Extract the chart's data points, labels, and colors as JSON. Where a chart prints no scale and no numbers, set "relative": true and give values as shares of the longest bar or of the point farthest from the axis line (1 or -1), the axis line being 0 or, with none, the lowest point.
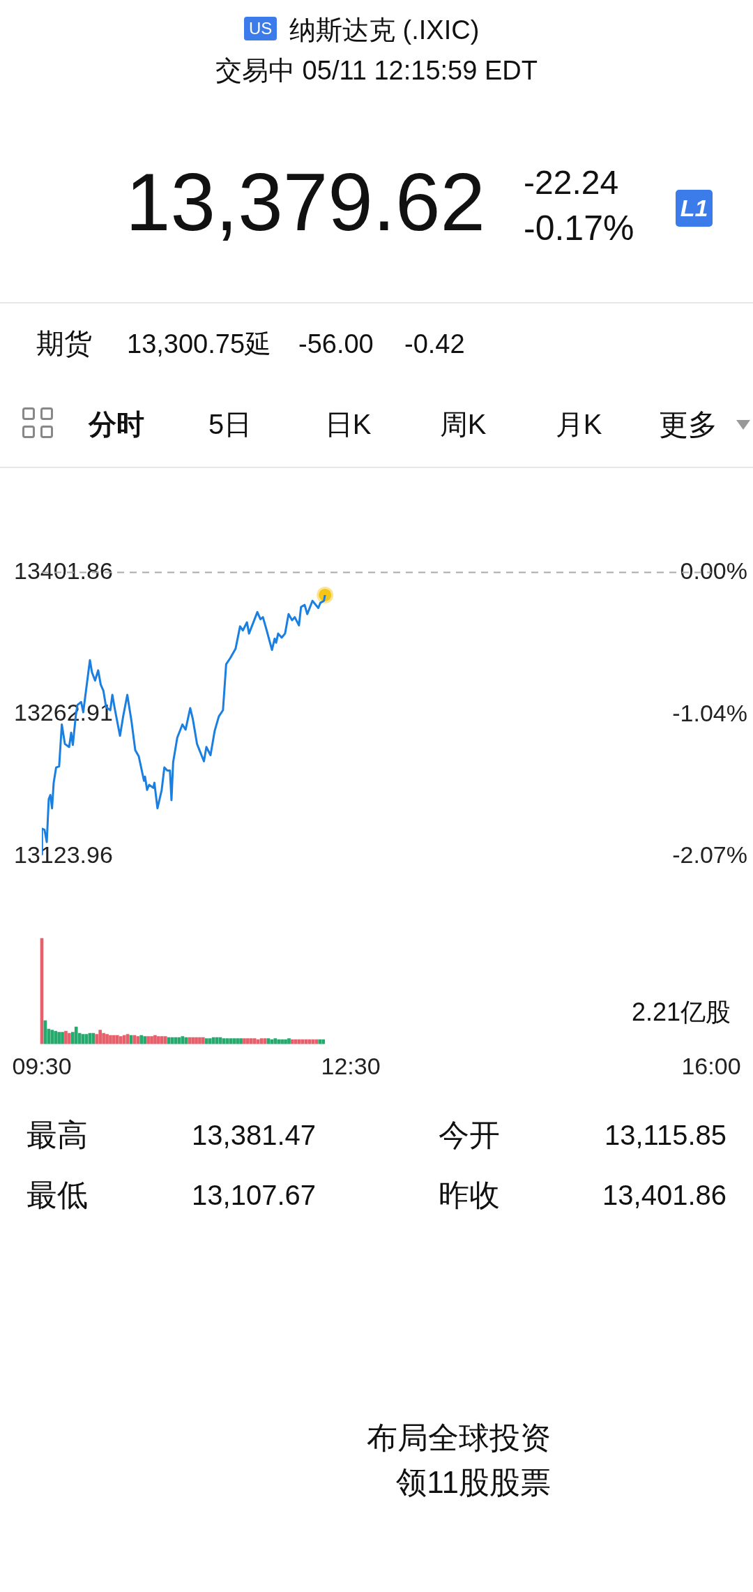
{
  "chart_data": [
    {
      "type": "line",
      "title": "纳斯达克 (.IXIC)",
      "subtitle": "交易中 05/11 12:15:59 EDT",
      "annotations": [
        "US",
        "13,379.62",
        "-22.24",
        "-0.17%",
        "L1",
        "期货",
        "13,300.75延",
        "-56.00",
        "-0.42",
        "分时",
        "5日",
        "日K",
        "周K",
        "月K",
        "更多",
        "最高",
        "13,381.47",
        "今开",
        "13,115.85",
        "最低",
        "13,107.67",
        "昨收",
        "13,401.86",
        "布局全球投资",
        "领11股股票"
      ],
      "xlim": [
        9.5,
        16
      ],
      "ylim": [
        13123.96,
        13401.86
      ],
      "yticks": [
        13123.96,
        13262.91,
        13401.86
      ],
      "y2lim": [
        -2.07,
        0
      ],
      "y2ticks": [
        {
          "value": -2.07,
          "label": "-2.07%"
        },
        {
          "value": -1.04,
          "label": "-1.04%"
        },
        {
          "value": 0,
          "label": "0.00%"
        }
      ],
      "tick_labels": "y",
      "ref_lines": [
        {
          "axis": "y",
          "value": 13401.86,
          "color": "#aaaaaa",
          "line_style": "dashed"
        }
      ],
      "series": [
        {
          "type": "line",
          "color": "#1a7fe0",
          "marker": "none",
          "x": [
            9.5,
            9.502,
            9.526,
            9.548,
            9.567,
            9.583,
            9.599,
            9.615,
            9.639,
            9.668,
            9.694,
            9.724,
            9.765,
            9.785,
            9.801,
            9.829,
            9.845,
            9.882,
            9.902,
            9.967,
            9.987,
            10.017,
            10.047,
            10.072,
            10.098,
            10.124,
            10.165,
            10.185,
            10.209,
            10.259,
            10.29,
            10.33,
            10.371,
            10.407,
            10.441,
            10.492,
            10.502,
            10.522,
            10.542,
            10.583,
            10.593,
            10.623,
            10.664,
            10.69,
            10.718,
            10.744,
            10.759,
            10.775,
            10.815,
            10.865,
            10.896,
            10.941,
            10.967,
            11.007,
            11.074,
            11.098,
            11.138,
            11.179,
            11.219,
            11.259,
            11.29,
            11.33,
            11.381,
            11.425,
            11.452,
            11.492,
            11.512,
            11.593,
            11.623,
            11.647,
            11.684,
            11.735,
            11.761,
            11.775,
            11.795,
            11.829,
            11.862,
            11.896,
            11.93,
            11.956,
            11.997,
            12.017,
            12.052,
            12.078,
            12.128,
            12.185,
            12.205,
            12.239,
            12.25
          ],
          "values": [
            13126,
            13151,
            13150,
            13138,
            13180,
            13184,
            13171,
            13196,
            13211,
            13212,
            13253,
            13234,
            13231,
            13245,
            13233,
            13261,
            13272,
            13275,
            13265,
            13316,
            13304,
            13296,
            13306,
            13292,
            13286,
            13270,
            13267,
            13282,
            13268,
            13242,
            13261,
            13282,
            13256,
            13228,
            13222,
            13198,
            13202,
            13189,
            13194,
            13191,
            13196,
            13171,
            13189,
            13211,
            13208,
            13208,
            13179,
            13216,
            13240,
            13253,
            13248,
            13269,
            13258,
            13234,
            13217,
            13231,
            13223,
            13247,
            13261,
            13267,
            13312,
            13318,
            13327,
            13349,
            13345,
            13353,
            13342,
            13363,
            13356,
            13358,
            13345,
            13326,
            13337,
            13333,
            13342,
            13338,
            13342,
            13361,
            13355,
            13358,
            13350,
            13368,
            13370,
            13361,
            13374,
            13367,
            13372,
            13374,
            13379.62
          ]
        },
        {
          "type": "scatter",
          "color": "#f5c518",
          "marker": "circle",
          "x": [
            12.25
          ],
          "values": [
            13379.62
          ]
        }
      ]
    },
    {
      "type": "bar",
      "relative": true,
      "annotations": [
        "2.21亿股"
      ],
      "xlim": [
        9.5,
        16
      ],
      "xticks": [
        {
          "value": 9.5,
          "label": "09:30"
        },
        {
          "value": 12.5,
          "label": "12:30"
        },
        {
          "value": 16,
          "label": "16:00"
        }
      ],
      "x": [
        9.5,
        9.5333,
        9.5667,
        9.6,
        9.6333,
        9.6667,
        9.7,
        9.7333,
        9.7667,
        9.8,
        9.8333,
        9.8667,
        9.9,
        9.9333,
        9.9667,
        10,
        10.0333,
        10.0667,
        10.1,
        10.1333,
        10.1667,
        10.2,
        10.2333,
        10.2667,
        10.3,
        10.3333,
        10.3667,
        10.4,
        10.4333,
        10.4667,
        10.5,
        10.5333,
        10.5667,
        10.6,
        10.6333,
        10.6667,
        10.7,
        10.7333,
        10.7667,
        10.8,
        10.8333,
        10.8667,
        10.9,
        10.9333,
        10.9667,
        11,
        11.0333,
        11.0667,
        11.1,
        11.1333,
        11.1667,
        11.2,
        11.2333,
        11.2667,
        11.3,
        11.3333,
        11.3667,
        11.4,
        11.4333,
        11.4667,
        11.5,
        11.5333,
        11.5667,
        11.6,
        11.6333,
        11.6667,
        11.7,
        11.7333,
        11.7667,
        11.8,
        11.8333,
        11.8667,
        11.9,
        11.9333,
        11.9667,
        12,
        12.0333,
        12.0667,
        12.1,
        12.1333,
        12.1667,
        12.2,
        12.2333
      ],
      "values": [
        1,
        0.22,
        0.14,
        0.13,
        0.12,
        0.11,
        0.11,
        0.12,
        0.1,
        0.11,
        0.16,
        0.1,
        0.09,
        0.09,
        0.1,
        0.1,
        0.09,
        0.13,
        0.1,
        0.09,
        0.08,
        0.08,
        0.08,
        0.07,
        0.08,
        0.09,
        0.08,
        0.08,
        0.07,
        0.08,
        0.07,
        0.07,
        0.07,
        0.08,
        0.07,
        0.07,
        0.07,
        0.06,
        0.06,
        0.06,
        0.06,
        0.07,
        0.06,
        0.06,
        0.06,
        0.06,
        0.06,
        0.06,
        0.05,
        0.05,
        0.06,
        0.06,
        0.06,
        0.05,
        0.05,
        0.05,
        0.05,
        0.05,
        0.05,
        0.05,
        0.05,
        0.05,
        0.05,
        0.04,
        0.05,
        0.05,
        0.05,
        0.04,
        0.05,
        0.04,
        0.04,
        0.04,
        0.05,
        0.04,
        0.04,
        0.04,
        0.04,
        0.04,
        0.04,
        0.04,
        0.04,
        0.04,
        0.04
      ],
      "colors": [
        "#e5606a",
        "#26a96c",
        "#26a96c",
        "#26a96c",
        "#26a96c",
        "#26a96c",
        "#26a96c",
        "#e5606a",
        "#e5606a",
        "#26a96c",
        "#26a96c",
        "#26a96c",
        "#26a96c",
        "#26a96c",
        "#26a96c",
        "#26a96c",
        "#e5606a",
        "#e5606a",
        "#e5606a",
        "#e5606a",
        "#e5606a",
        "#e5606a",
        "#e5606a",
        "#e5606a",
        "#e5606a",
        "#e5606a",
        "#26a96c",
        "#e5606a",
        "#e5606a",
        "#26a96c",
        "#26a96c",
        "#e5606a",
        "#e5606a",
        "#e5606a",
        "#e5606a",
        "#e5606a",
        "#e5606a",
        "#26a96c",
        "#26a96c",
        "#26a96c",
        "#26a96c",
        "#26a96c",
        "#26a96c",
        "#e5606a",
        "#e5606a",
        "#e5606a",
        "#e5606a",
        "#e5606a",
        "#26a96c",
        "#26a96c",
        "#26a96c",
        "#26a96c",
        "#26a96c",
        "#26a96c",
        "#26a96c",
        "#26a96c",
        "#26a96c",
        "#26a96c",
        "#26a96c",
        "#e5606a",
        "#e5606a",
        "#e5606a",
        "#e5606a",
        "#e5606a",
        "#e5606a",
        "#e5606a",
        "#26a96c",
        "#26a96c",
        "#26a96c",
        "#26a96c",
        "#26a96c",
        "#26a96c",
        "#26a96c",
        "#e5606a",
        "#e5606a",
        "#e5606a",
        "#e5606a",
        "#e5606a",
        "#e5606a",
        "#e5606a",
        "#e5606a",
        "#26a96c",
        "#26a96c"
      ]
    }
  ]
}
